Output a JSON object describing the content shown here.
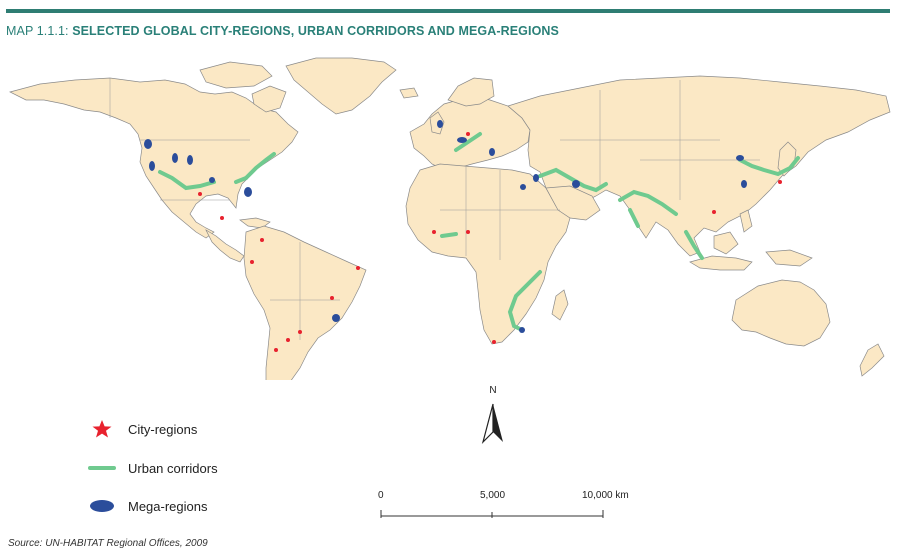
{
  "map": {
    "title_prefix": "MAP 1.1.1:",
    "title": "SELECTED GLOBAL CITY-REGIONS, URBAN CORRIDORS AND MEGA-REGIONS",
    "colors": {
      "land": "#fbe8c5",
      "border": "#8a8a8a",
      "ocean": "#ffffff",
      "city_region": "#e8222e",
      "urban_corridor": "#6fca8f",
      "mega_region": "#2b4d9b",
      "accent": "#2e7d73"
    },
    "north_label": "N",
    "legend": [
      {
        "label": "City-regions",
        "icon": "red-star-icon"
      },
      {
        "label": "Urban corridors",
        "icon": "green-line-icon"
      },
      {
        "label": "Mega-regions",
        "icon": "blue-ellipse-icon"
      }
    ],
    "scale": {
      "labels": [
        "0",
        "5,000",
        "10,000 km"
      ]
    },
    "source": "Source: UN-HABITAT Regional Offices, 2009"
  }
}
